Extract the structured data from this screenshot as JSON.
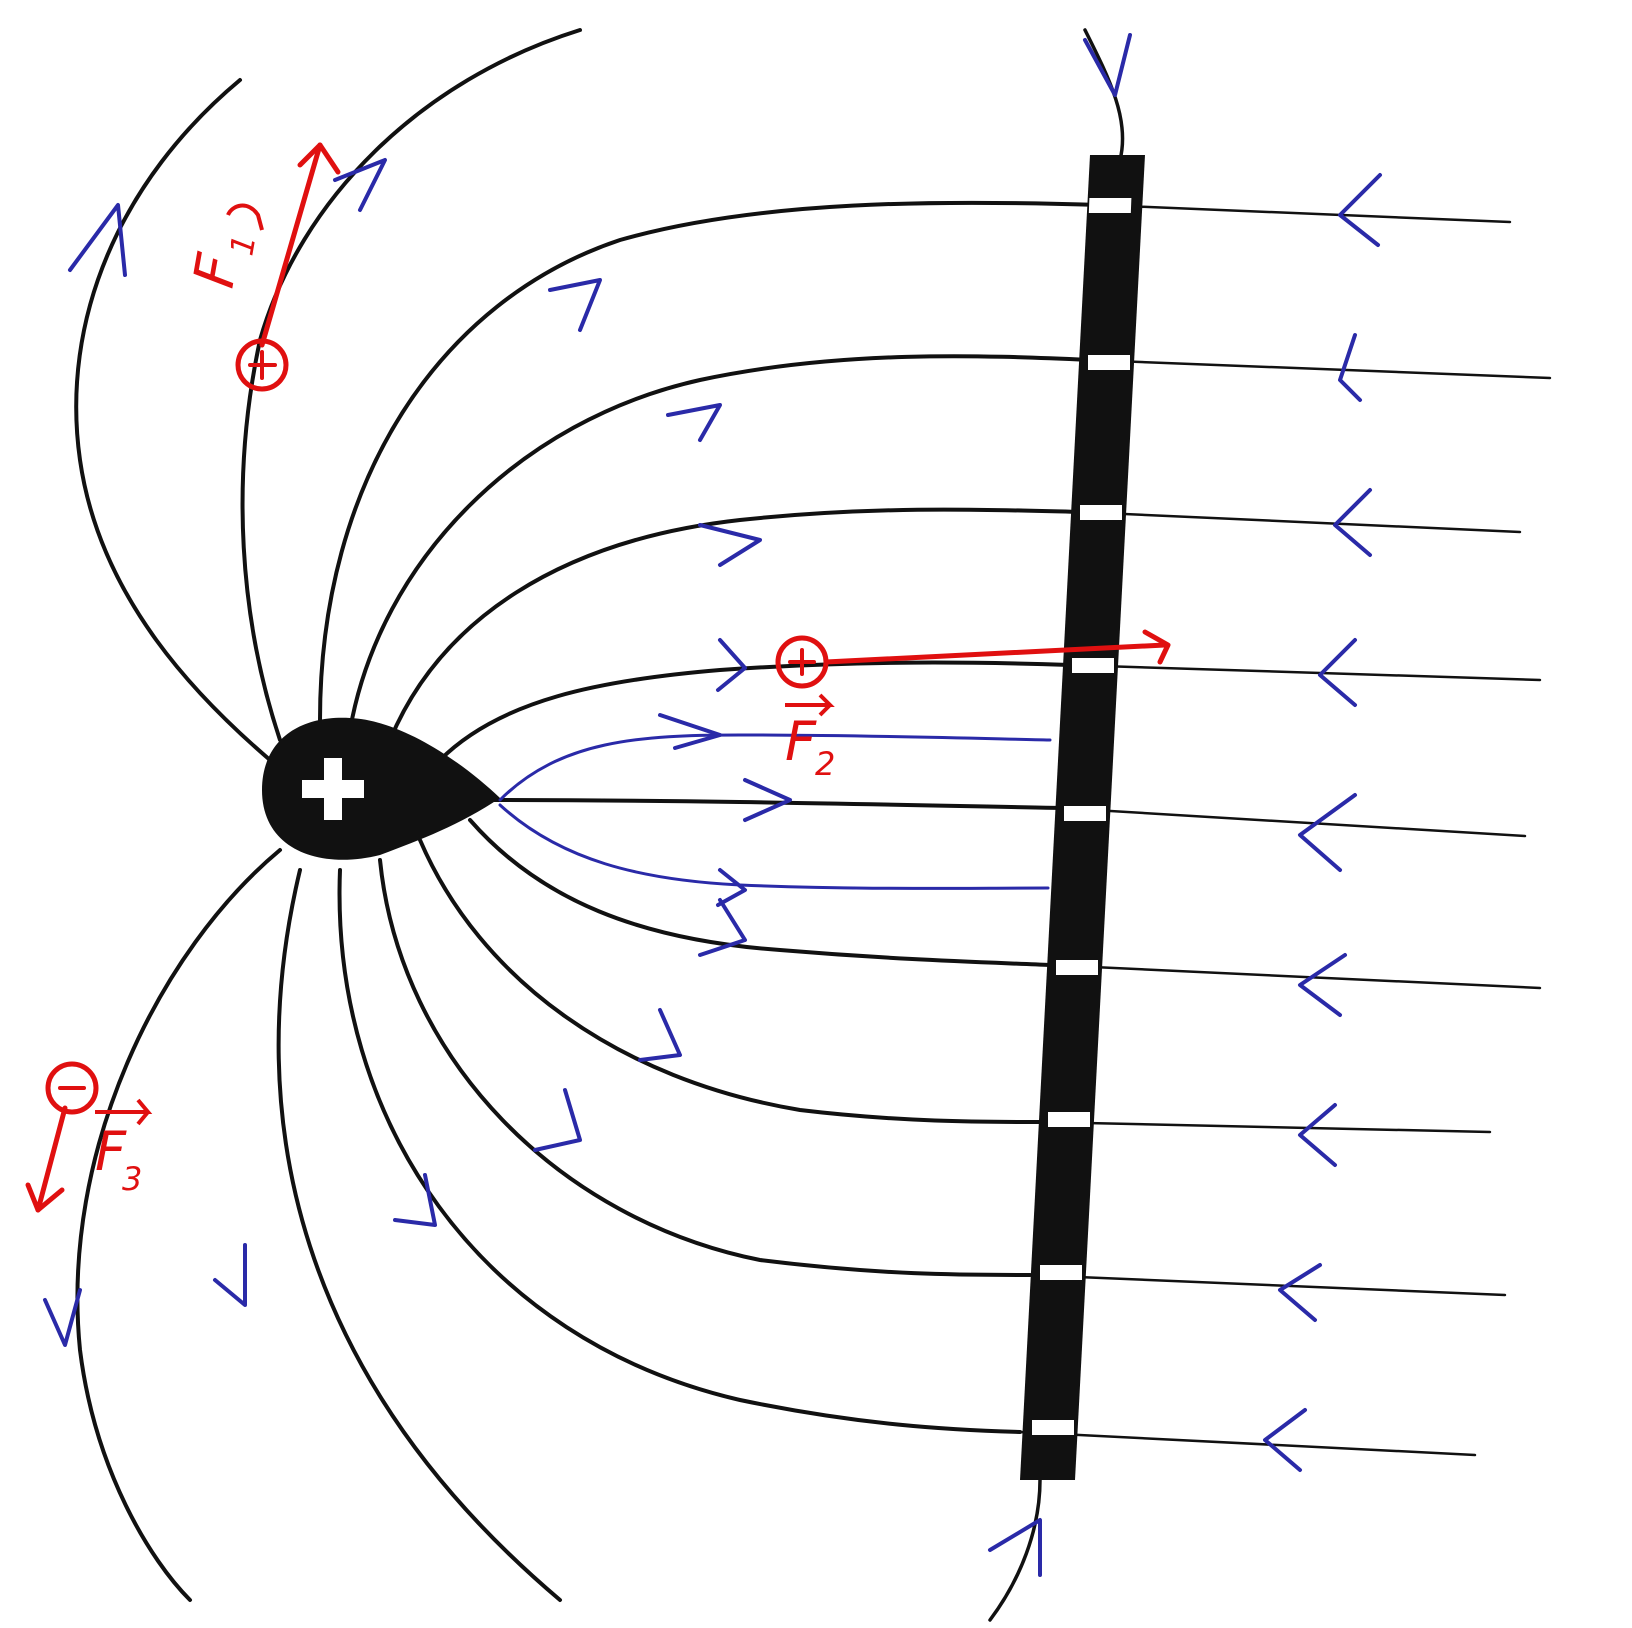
{
  "colors": {
    "ink": "#111111",
    "field_arrow": "#2a2aa8",
    "force": "#e01010",
    "paper": "#ffffff"
  },
  "central_charge": {
    "sign": "+"
  },
  "plate": {
    "description_icon": "charged-plate"
  },
  "test_charges": [
    {
      "sign": "+",
      "force_label": "F",
      "force_subscript": "1"
    },
    {
      "sign": "+",
      "force_label": "F",
      "force_subscript": "2"
    },
    {
      "sign": "−",
      "force_label": "F",
      "force_subscript": "3"
    }
  ]
}
